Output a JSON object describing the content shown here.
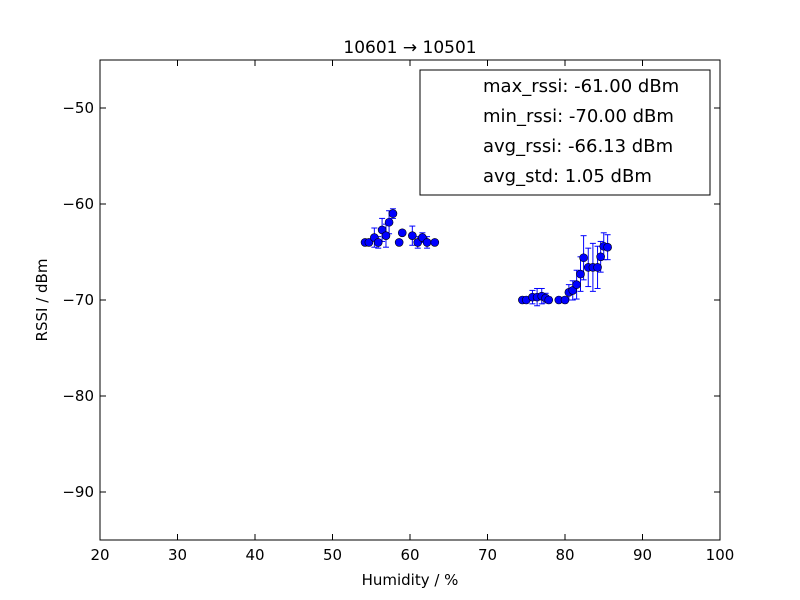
{
  "chart_data": {
    "type": "scatter",
    "title": "10601 → 10501",
    "xlabel": "Humidity / %",
    "ylabel": "RSSI / dBm",
    "xlim": [
      20,
      100
    ],
    "ylim": [
      -95,
      -45
    ],
    "x_ticks": [
      20,
      30,
      40,
      50,
      60,
      70,
      80,
      90,
      100
    ],
    "y_ticks": [
      -90,
      -80,
      -70,
      -60,
      -50
    ],
    "x_tick_labels": [
      "20",
      "30",
      "40",
      "50",
      "60",
      "70",
      "80",
      "90",
      "100"
    ],
    "y_tick_labels": [
      "−90",
      "−80",
      "−70",
      "−60",
      "−50"
    ],
    "grid": false,
    "legend_position": "top-right",
    "legend": [
      "max_rssi: -61.00 dBm",
      "min_rssi: -70.00 dBm",
      "avg_rssi: -66.13 dBm",
      "avg_std: 1.05 dBm"
    ],
    "series": [
      {
        "name": "rssi",
        "color": "#0000ff",
        "errorbars": true,
        "points": [
          {
            "x": 54.2,
            "y": -64.0,
            "err": 0.0
          },
          {
            "x": 54.7,
            "y": -64.0,
            "err": 0.0
          },
          {
            "x": 55.4,
            "y": -63.5,
            "err": 1.0
          },
          {
            "x": 55.9,
            "y": -64.0,
            "err": 0.6
          },
          {
            "x": 56.4,
            "y": -62.7,
            "err": 1.2
          },
          {
            "x": 56.9,
            "y": -63.3,
            "err": 1.2
          },
          {
            "x": 57.3,
            "y": -61.9,
            "err": 1.2
          },
          {
            "x": 57.8,
            "y": -61.0,
            "err": 0.5
          },
          {
            "x": 58.6,
            "y": -64.0,
            "err": 0.0
          },
          {
            "x": 59.0,
            "y": -63.0,
            "err": 0.0
          },
          {
            "x": 60.3,
            "y": -63.3,
            "err": 1.0
          },
          {
            "x": 61.0,
            "y": -64.0,
            "err": 0.6
          },
          {
            "x": 61.6,
            "y": -63.5,
            "err": 0.5
          },
          {
            "x": 62.2,
            "y": -64.0,
            "err": 0.6
          },
          {
            "x": 63.2,
            "y": -64.0,
            "err": 0.0
          },
          {
            "x": 74.5,
            "y": -70.0,
            "err": 0.0
          },
          {
            "x": 75.0,
            "y": -70.0,
            "err": 0.0
          },
          {
            "x": 75.8,
            "y": -69.7,
            "err": 0.7
          },
          {
            "x": 76.4,
            "y": -69.7,
            "err": 0.9
          },
          {
            "x": 77.0,
            "y": -69.6,
            "err": 0.8
          },
          {
            "x": 77.5,
            "y": -69.8,
            "err": 0.5
          },
          {
            "x": 77.9,
            "y": -70.0,
            "err": 0.3
          },
          {
            "x": 79.2,
            "y": -70.0,
            "err": 0.0
          },
          {
            "x": 80.0,
            "y": -70.0,
            "err": 0.3
          },
          {
            "x": 80.5,
            "y": -69.2,
            "err": 0.8
          },
          {
            "x": 81.0,
            "y": -69.0,
            "err": 1.0
          },
          {
            "x": 81.5,
            "y": -68.4,
            "err": 1.5
          },
          {
            "x": 82.0,
            "y": -67.3,
            "err": 1.8
          },
          {
            "x": 82.4,
            "y": -65.6,
            "err": 2.3
          },
          {
            "x": 83.0,
            "y": -66.6,
            "err": 2.0
          },
          {
            "x": 83.6,
            "y": -66.6,
            "err": 2.5
          },
          {
            "x": 84.2,
            "y": -66.6,
            "err": 2.2
          },
          {
            "x": 84.6,
            "y": -65.5,
            "err": 1.6
          },
          {
            "x": 85.0,
            "y": -64.4,
            "err": 1.4
          },
          {
            "x": 85.5,
            "y": -64.5,
            "err": 1.3
          }
        ]
      }
    ]
  }
}
